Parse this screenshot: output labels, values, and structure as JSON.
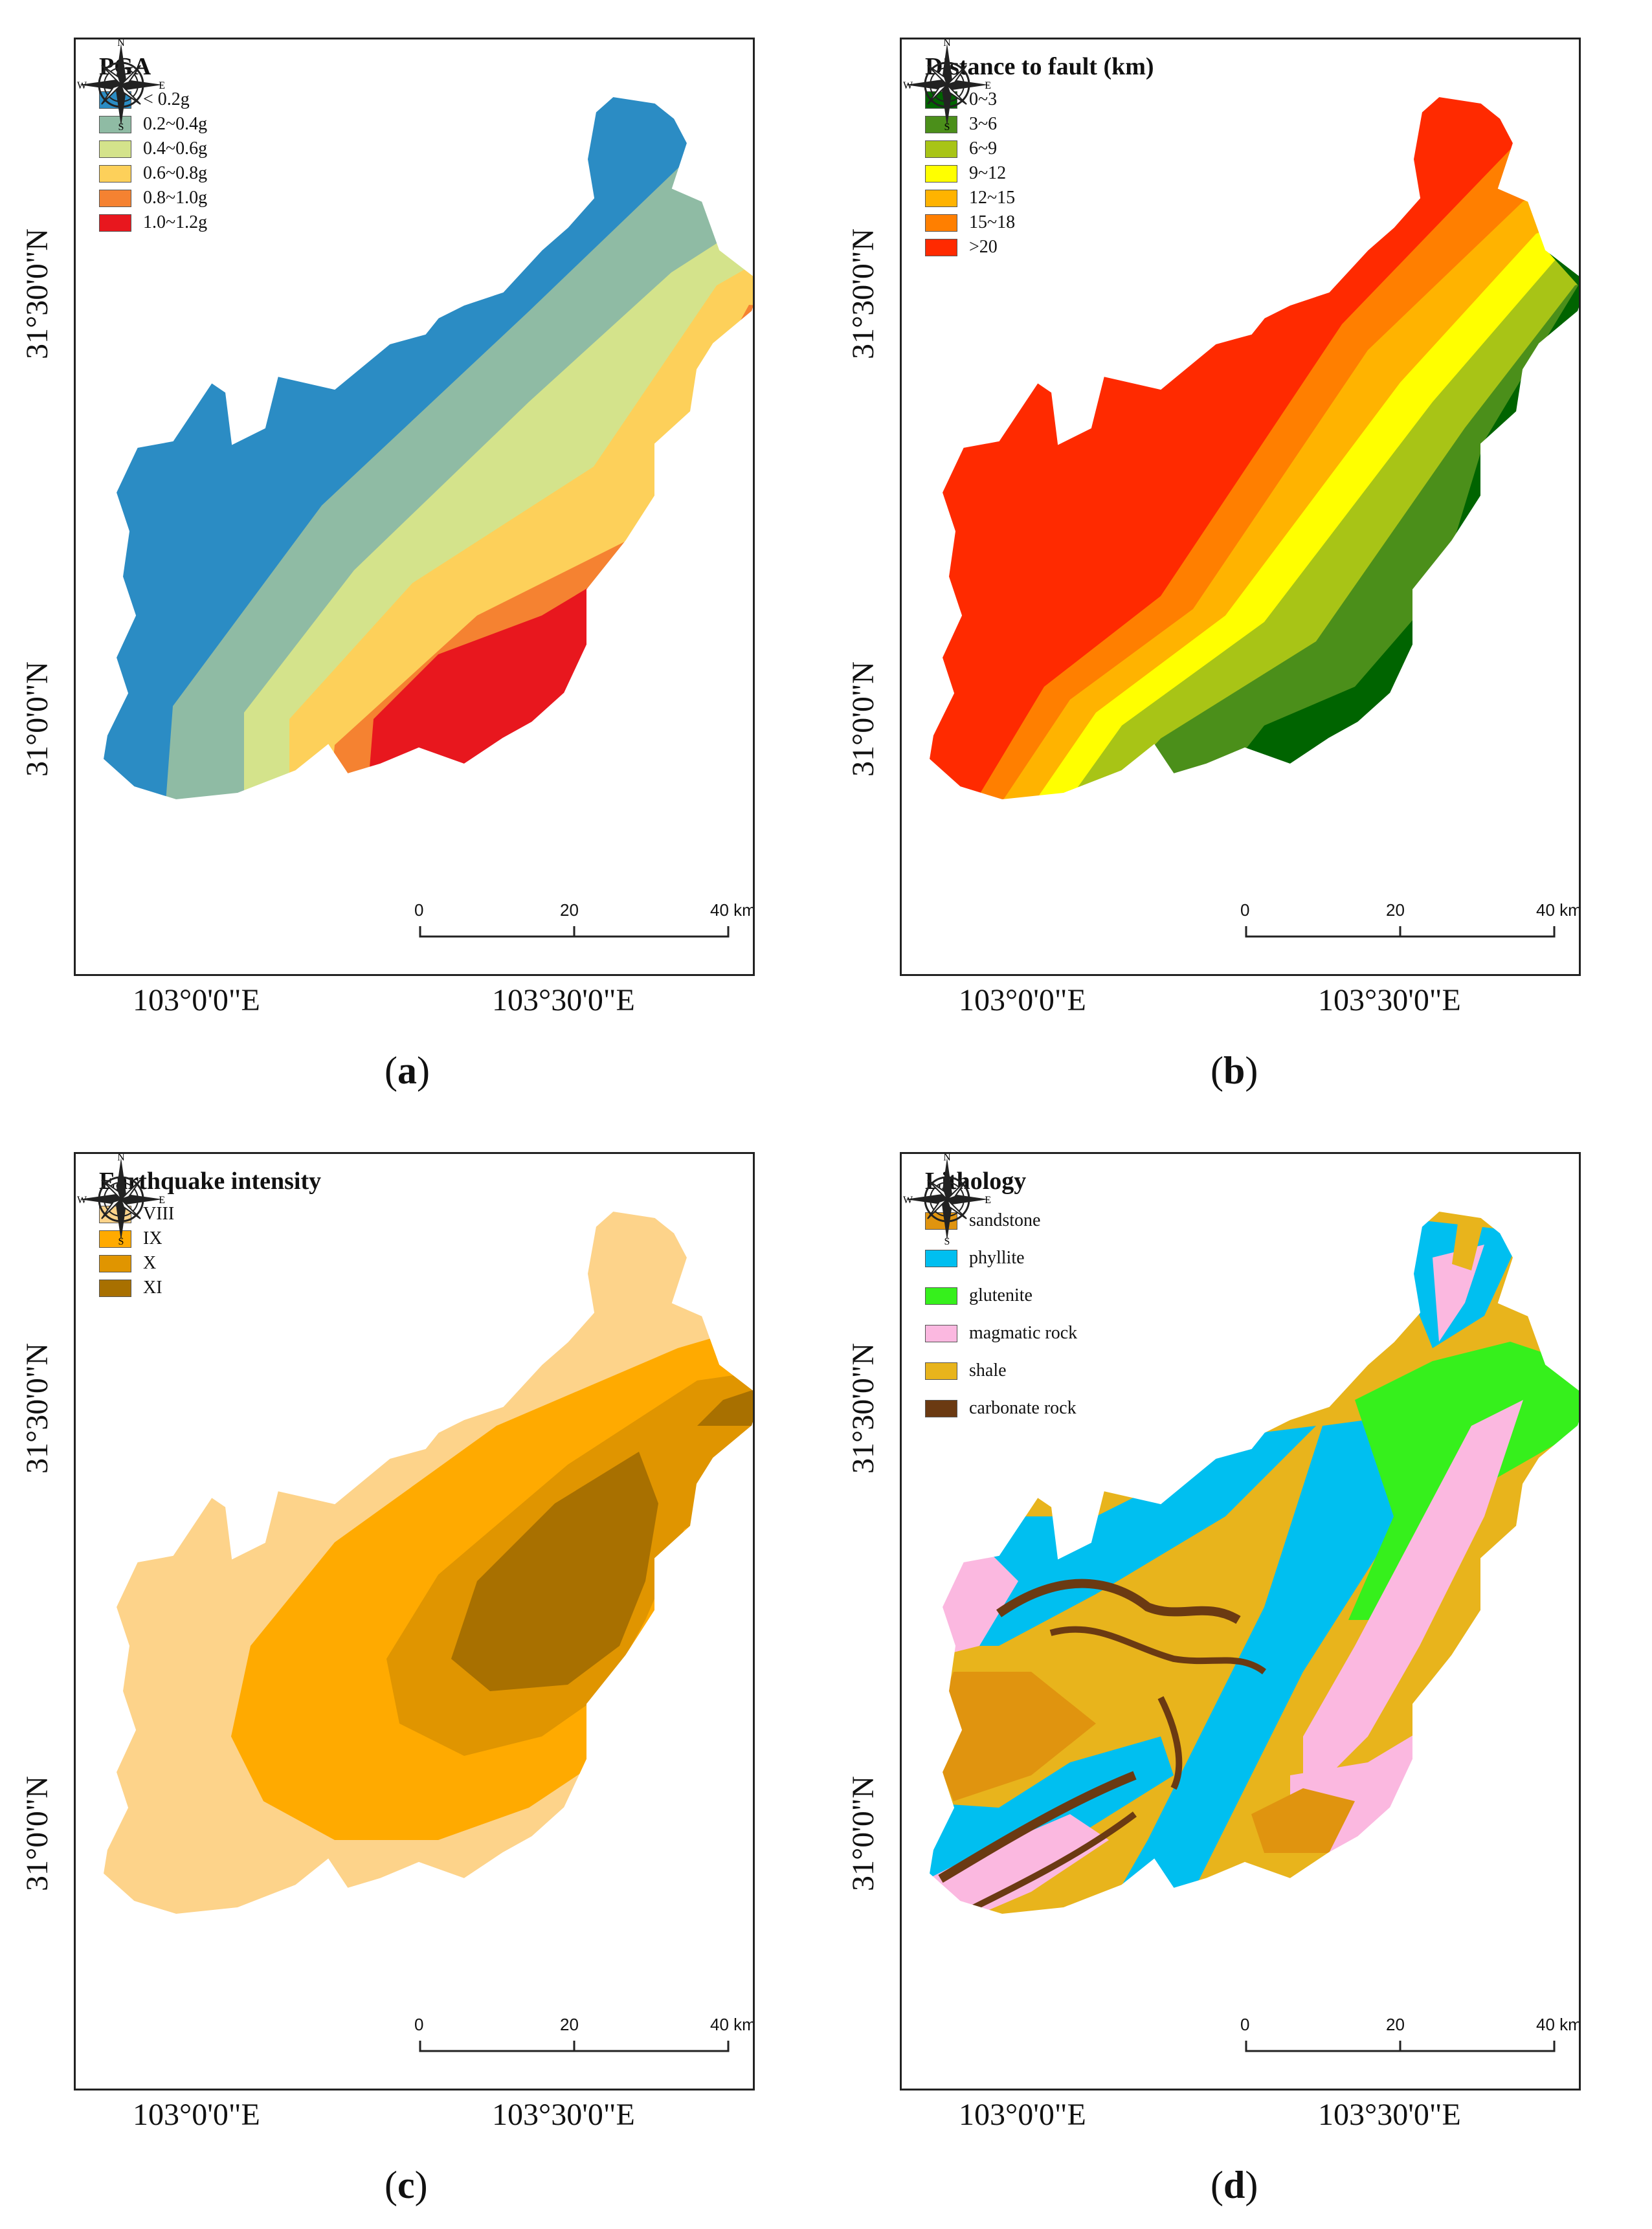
{
  "axes": {
    "lat_labels": [
      "31°30'0\"N",
      "31°0'0\"N"
    ],
    "lon_labels": [
      "103°0'0\"E",
      "103°30'0\"E"
    ]
  },
  "compass": {
    "n": "N",
    "s": "S",
    "e": "E",
    "w": "W"
  },
  "scale": {
    "labels": [
      "0",
      "20",
      "40 km"
    ]
  },
  "panels": [
    {
      "caption_letter": "a",
      "legend_title": "PGA",
      "legend": [
        {
          "label": "< 0.2g",
          "color": "#2b8cc4"
        },
        {
          "label": "0.2~0.4g",
          "color": "#8fbba4"
        },
        {
          "label": "0.4~0.6g",
          "color": "#d4e38b"
        },
        {
          "label": "0.6~0.8g",
          "color": "#fdd05a"
        },
        {
          "label": "0.8~1.0g",
          "color": "#f58231"
        },
        {
          "label": "1.0~1.2g",
          "color": "#e8171e"
        }
      ]
    },
    {
      "caption_letter": "b",
      "legend_title": "Distance to fault (km)",
      "legend": [
        {
          "label": "0~3",
          "color": "#006400"
        },
        {
          "label": "3~6",
          "color": "#4b8f1a"
        },
        {
          "label": "6~9",
          "color": "#a8c416"
        },
        {
          "label": "9~12",
          "color": "#ffff00"
        },
        {
          "label": "12~15",
          "color": "#ffb300"
        },
        {
          "label": "15~18",
          "color": "#ff7f00"
        },
        {
          "label": ">20",
          "color": "#ff2a00"
        }
      ]
    },
    {
      "caption_letter": "c",
      "legend_title": "Earthquake intensity",
      "legend": [
        {
          "label": "VIII",
          "color": "#fdd38a"
        },
        {
          "label": "IX",
          "color": "#ffaa00"
        },
        {
          "label": "X",
          "color": "#e09500"
        },
        {
          "label": "XI",
          "color": "#a87000"
        }
      ]
    },
    {
      "caption_letter": "d",
      "legend_title": "Lithology",
      "legend": [
        {
          "label": "sandstone",
          "color": "#e0940f"
        },
        {
          "label": "phyllite",
          "color": "#00bff0"
        },
        {
          "label": "glutenite",
          "color": "#36f01c"
        },
        {
          "label": "magmatic rock",
          "color": "#fbb8e0"
        },
        {
          "label": "shale",
          "color": "#e8b41c"
        },
        {
          "label": "carbonate rock",
          "color": "#6b3a12"
        }
      ]
    }
  ]
}
